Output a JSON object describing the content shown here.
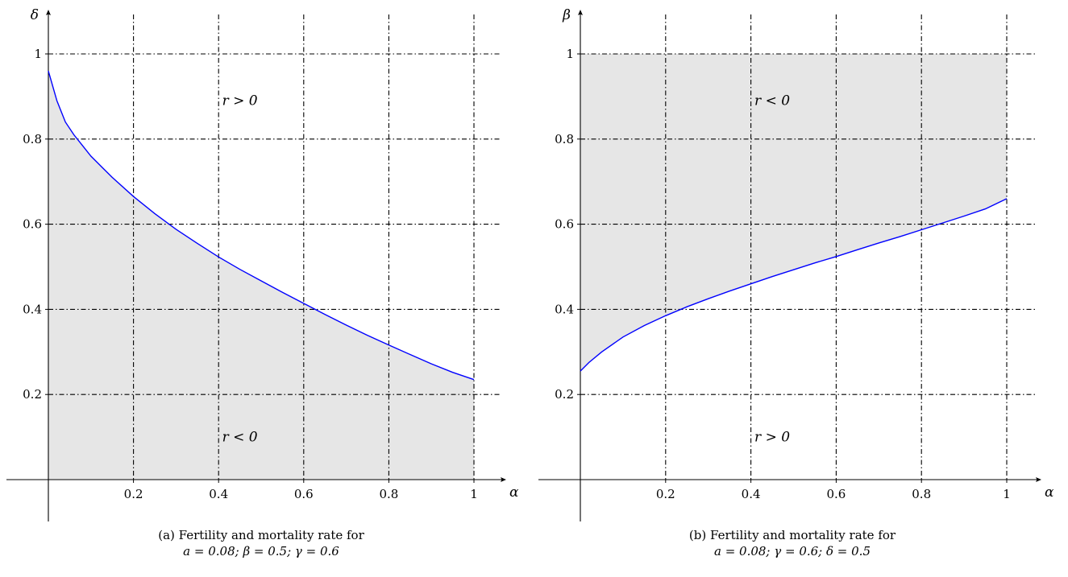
{
  "chart_data": [
    {
      "type": "line",
      "panel": "a",
      "caption_line1": "(a) Fertility and mortality rate for",
      "caption_line2": "a = 0.08; β = 0.5; γ = 0.6",
      "xlabel": "α",
      "ylabel": "δ",
      "xlim": [
        0,
        1
      ],
      "ylim": [
        0,
        1
      ],
      "x_ticks": [
        "0.2",
        "0.4",
        "0.6",
        "0.8",
        "1"
      ],
      "y_ticks": [
        "0.2",
        "0.4",
        "0.6",
        "0.8",
        "1"
      ],
      "grid": true,
      "shaded_region": "below curve",
      "region_labels": [
        {
          "text": "r > 0",
          "x": 0.45,
          "y": 0.88
        },
        {
          "text": "r < 0",
          "x": 0.45,
          "y": 0.09
        }
      ],
      "series": [
        {
          "color": "#0000ff",
          "x": [
            0.0,
            0.02,
            0.04,
            0.06,
            0.08,
            0.1,
            0.15,
            0.2,
            0.25,
            0.3,
            0.35,
            0.4,
            0.45,
            0.5,
            0.55,
            0.6,
            0.65,
            0.7,
            0.75,
            0.8,
            0.85,
            0.9,
            0.95,
            1.0
          ],
          "y": [
            0.96,
            0.89,
            0.84,
            0.81,
            0.785,
            0.76,
            0.71,
            0.665,
            0.625,
            0.588,
            0.555,
            0.523,
            0.494,
            0.467,
            0.44,
            0.414,
            0.388,
            0.363,
            0.339,
            0.316,
            0.294,
            0.272,
            0.252,
            0.235
          ]
        }
      ]
    },
    {
      "type": "line",
      "panel": "b",
      "caption_line1": "(b) Fertility and mortality rate for",
      "caption_line2": "a = 0.08; γ = 0.6; δ = 0.5",
      "xlabel": "α",
      "ylabel": "β",
      "xlim": [
        0,
        1
      ],
      "ylim": [
        0,
        1
      ],
      "x_ticks": [
        "0.2",
        "0.4",
        "0.6",
        "0.8",
        "1"
      ],
      "y_ticks": [
        "0.2",
        "0.4",
        "0.6",
        "0.8",
        "1"
      ],
      "grid": true,
      "shaded_region": "above curve",
      "region_labels": [
        {
          "text": "r < 0",
          "x": 0.45,
          "y": 0.88
        },
        {
          "text": "r > 0",
          "x": 0.45,
          "y": 0.09
        }
      ],
      "series": [
        {
          "color": "#0000ff",
          "x": [
            0.0,
            0.02,
            0.05,
            0.1,
            0.15,
            0.2,
            0.25,
            0.3,
            0.35,
            0.4,
            0.45,
            0.5,
            0.55,
            0.6,
            0.65,
            0.7,
            0.75,
            0.8,
            0.85,
            0.9,
            0.95,
            1.0
          ],
          "y": [
            0.255,
            0.275,
            0.3,
            0.335,
            0.362,
            0.385,
            0.406,
            0.425,
            0.443,
            0.46,
            0.477,
            0.493,
            0.509,
            0.524,
            0.54,
            0.556,
            0.571,
            0.587,
            0.603,
            0.619,
            0.636,
            0.66
          ]
        }
      ]
    }
  ]
}
